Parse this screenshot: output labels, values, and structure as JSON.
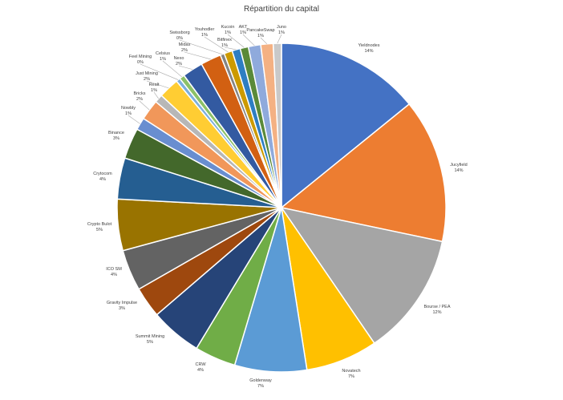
{
  "chart_data": {
    "type": "pie",
    "title": "Répartition du capital",
    "slices": [
      {
        "label": "Yieldnodes",
        "pct": "14%",
        "value": 14,
        "color": "#4472C4"
      },
      {
        "label": "Jucyfield",
        "pct": "14%",
        "value": 14,
        "color": "#ED7D31"
      },
      {
        "label": "Bourse / PEA",
        "pct": "12%",
        "value": 12,
        "color": "#A5A5A5"
      },
      {
        "label": "Novatech",
        "pct": "7%",
        "value": 7,
        "color": "#FFC000"
      },
      {
        "label": "Goldenway",
        "pct": "7%",
        "value": 7,
        "color": "#5B9BD5"
      },
      {
        "label": "CRW",
        "pct": "4%",
        "value": 4,
        "color": "#70AD47"
      },
      {
        "label": "Summit Mining",
        "pct": "5%",
        "value": 5,
        "color": "#264478"
      },
      {
        "label": "Gravity Impulse",
        "pct": "3%",
        "value": 3,
        "color": "#9E480E"
      },
      {
        "label": "ICO SM",
        "pct": "4%",
        "value": 4,
        "color": "#636363"
      },
      {
        "label": "Crypto Bulot",
        "pct": "5%",
        "value": 5,
        "color": "#997300"
      },
      {
        "label": "Crytocom",
        "pct": "4%",
        "value": 4,
        "color": "#255E91"
      },
      {
        "label": "Binance",
        "pct": "3%",
        "value": 3,
        "color": "#43682B"
      },
      {
        "label": "Nowbly",
        "pct": "1%",
        "value": 1.2,
        "color": "#698ED0"
      },
      {
        "label": "Bricks",
        "pct": "2%",
        "value": 2,
        "color": "#F1975A"
      },
      {
        "label": "Realt",
        "pct": "1%",
        "value": 0.8,
        "color": "#B7B7B7"
      },
      {
        "label": "Just Mining",
        "pct": "2%",
        "value": 2,
        "color": "#FFCD33"
      },
      {
        "label": "Feel Mining",
        "pct": "0%",
        "value": 0.4,
        "color": "#7CAFDD"
      },
      {
        "label": "Celsius",
        "pct": "1%",
        "value": 0.5,
        "color": "#8CC168"
      },
      {
        "label": "Nexo",
        "pct": "2%",
        "value": 2,
        "color": "#335AA1"
      },
      {
        "label": "Midas",
        "pct": "2%",
        "value": 2,
        "color": "#D26012"
      },
      {
        "label": "Swissborg",
        "pct": "0%",
        "value": 0.4,
        "color": "#848484"
      },
      {
        "label": "Youhodler",
        "pct": "1%",
        "value": 0.8,
        "color": "#CC9A00"
      },
      {
        "label": "Bitfinex",
        "pct": "1%",
        "value": 0.8,
        "color": "#2E7EC2"
      },
      {
        "label": "Kucoin",
        "pct": "1%",
        "value": 0.8,
        "color": "#5A8A39"
      },
      {
        "label": "AKT",
        "pct": "1%",
        "value": 1.2,
        "color": "#8FAADC"
      },
      {
        "label": "PancakeSwap",
        "pct": "1%",
        "value": 1.2,
        "color": "#F4B183"
      },
      {
        "label": "Juno",
        "pct": "1%",
        "value": 0.8,
        "color": "#C9C9C9"
      }
    ]
  }
}
